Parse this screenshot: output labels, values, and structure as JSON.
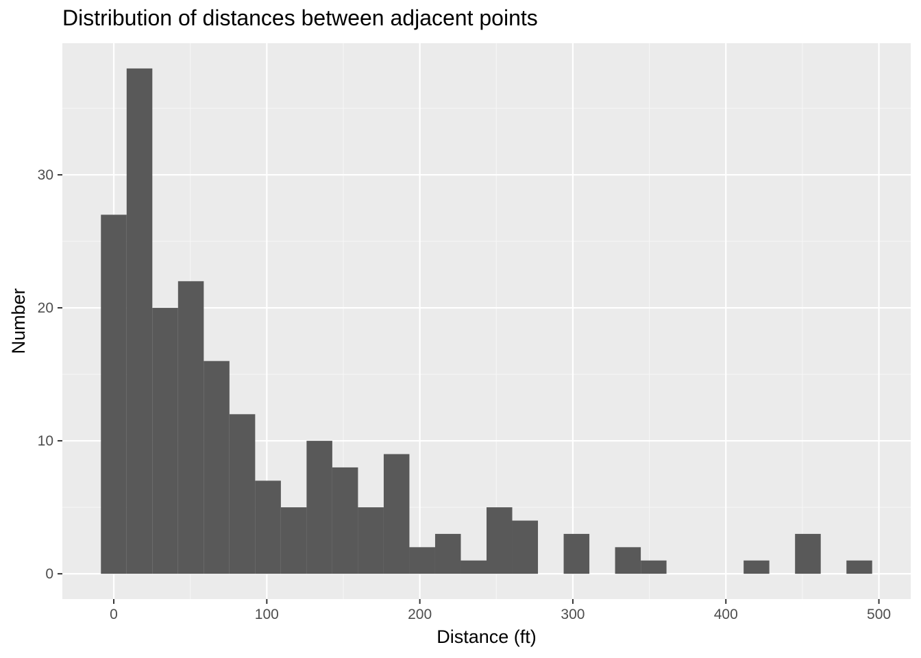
{
  "title": "Distribution of distances between adjacent points",
  "chart_data": {
    "type": "bar",
    "subtype": "histogram",
    "title": "Distribution of distances between adjacent points",
    "xlabel": "Distance (ft)",
    "ylabel": "Number",
    "bin_width": 16.8,
    "bins": [
      {
        "x0": -8.4,
        "x1": 8.4,
        "count": 27
      },
      {
        "x0": 8.4,
        "x1": 25.2,
        "count": 38
      },
      {
        "x0": 25.2,
        "x1": 42.0,
        "count": 20
      },
      {
        "x0": 42.0,
        "x1": 58.8,
        "count": 22
      },
      {
        "x0": 58.8,
        "x1": 75.6,
        "count": 16
      },
      {
        "x0": 75.6,
        "x1": 92.4,
        "count": 12
      },
      {
        "x0": 92.4,
        "x1": 109.2,
        "count": 7
      },
      {
        "x0": 109.2,
        "x1": 126.0,
        "count": 5
      },
      {
        "x0": 126.0,
        "x1": 142.8,
        "count": 10
      },
      {
        "x0": 142.8,
        "x1": 159.6,
        "count": 8
      },
      {
        "x0": 159.6,
        "x1": 176.4,
        "count": 5
      },
      {
        "x0": 176.4,
        "x1": 193.2,
        "count": 9
      },
      {
        "x0": 193.2,
        "x1": 210.0,
        "count": 2
      },
      {
        "x0": 210.0,
        "x1": 226.8,
        "count": 3
      },
      {
        "x0": 226.8,
        "x1": 243.6,
        "count": 1
      },
      {
        "x0": 243.6,
        "x1": 260.4,
        "count": 5
      },
      {
        "x0": 260.4,
        "x1": 277.2,
        "count": 4
      },
      {
        "x0": 277.2,
        "x1": 294.0,
        "count": 0
      },
      {
        "x0": 294.0,
        "x1": 310.8,
        "count": 3
      },
      {
        "x0": 310.8,
        "x1": 327.6,
        "count": 0
      },
      {
        "x0": 327.6,
        "x1": 344.4,
        "count": 2
      },
      {
        "x0": 344.4,
        "x1": 361.2,
        "count": 1
      },
      {
        "x0": 361.2,
        "x1": 378.0,
        "count": 0
      },
      {
        "x0": 378.0,
        "x1": 394.8,
        "count": 0
      },
      {
        "x0": 394.8,
        "x1": 411.6,
        "count": 0
      },
      {
        "x0": 411.6,
        "x1": 428.4,
        "count": 1
      },
      {
        "x0": 428.4,
        "x1": 445.2,
        "count": 0
      },
      {
        "x0": 445.2,
        "x1": 462.0,
        "count": 3
      },
      {
        "x0": 462.0,
        "x1": 478.8,
        "count": 0
      },
      {
        "x0": 478.8,
        "x1": 495.6,
        "count": 1
      }
    ],
    "xlim": [
      -33.6,
      520.8
    ],
    "ylim": [
      -1.9,
      39.9
    ],
    "x_ticks": [
      0,
      100,
      200,
      300,
      400,
      500
    ],
    "x_tick_labels": [
      "0",
      "100",
      "200",
      "300",
      "400",
      "500"
    ],
    "y_ticks": [
      0,
      10,
      20,
      30
    ],
    "y_tick_labels": [
      "0",
      "10",
      "20",
      "30"
    ],
    "grid": true,
    "legend": "none",
    "colors": {
      "bar_fill": "#595959",
      "panel_background": "#ebebeb",
      "grid_major": "#ffffff",
      "grid_minor": "#f5f5f5",
      "tick_text": "#4d4d4d",
      "tick_mark": "#333333"
    }
  }
}
